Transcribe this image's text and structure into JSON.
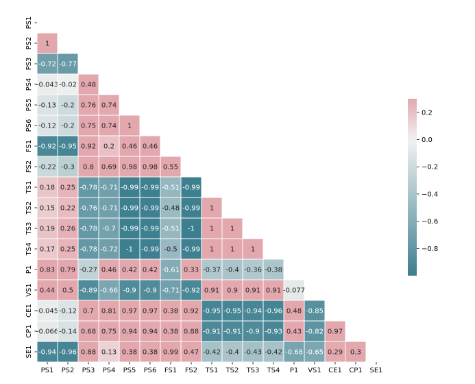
{
  "chart_data": {
    "type": "heatmap",
    "title": "",
    "xlabel": "",
    "ylabel": "",
    "mask": "upper-triangle-including-diagonal",
    "labels": [
      "PS1",
      "PS2",
      "PS3",
      "PS4",
      "PS5",
      "PS6",
      "FS1",
      "FS2",
      "TS1",
      "TS2",
      "TS3",
      "TS4",
      "P1",
      "VS1",
      "CE1",
      "CP1",
      "SE1"
    ],
    "cells": [
      {
        "row": "PS2",
        "col": "PS1",
        "value": 1,
        "label": "1"
      },
      {
        "row": "PS3",
        "col": "PS1",
        "value": -0.72,
        "label": "-0.72"
      },
      {
        "row": "PS3",
        "col": "PS2",
        "value": -0.77,
        "label": "-0.77"
      },
      {
        "row": "PS4",
        "col": "PS1",
        "value": -0.043,
        "label": "-0.043"
      },
      {
        "row": "PS4",
        "col": "PS2",
        "value": -0.02,
        "label": "-0.02"
      },
      {
        "row": "PS4",
        "col": "PS3",
        "value": 0.48,
        "label": "0.48"
      },
      {
        "row": "PS5",
        "col": "PS1",
        "value": -0.13,
        "label": "-0.13"
      },
      {
        "row": "PS5",
        "col": "PS2",
        "value": -0.2,
        "label": "-0.2"
      },
      {
        "row": "PS5",
        "col": "PS3",
        "value": 0.76,
        "label": "0.76"
      },
      {
        "row": "PS5",
        "col": "PS4",
        "value": 0.74,
        "label": "0.74"
      },
      {
        "row": "PS6",
        "col": "PS1",
        "value": -0.12,
        "label": "-0.12"
      },
      {
        "row": "PS6",
        "col": "PS2",
        "value": -0.2,
        "label": "-0.2"
      },
      {
        "row": "PS6",
        "col": "PS3",
        "value": 0.75,
        "label": "0.75"
      },
      {
        "row": "PS6",
        "col": "PS4",
        "value": 0.74,
        "label": "0.74"
      },
      {
        "row": "PS6",
        "col": "PS5",
        "value": 1,
        "label": "1"
      },
      {
        "row": "FS1",
        "col": "PS1",
        "value": -0.92,
        "label": "-0.92"
      },
      {
        "row": "FS1",
        "col": "PS2",
        "value": -0.95,
        "label": "-0.95"
      },
      {
        "row": "FS1",
        "col": "PS3",
        "value": 0.92,
        "label": "0.92"
      },
      {
        "row": "FS1",
        "col": "PS4",
        "value": 0.2,
        "label": "0.2"
      },
      {
        "row": "FS1",
        "col": "PS5",
        "value": 0.46,
        "label": "0.46"
      },
      {
        "row": "FS1",
        "col": "PS6",
        "value": 0.46,
        "label": "0.46"
      },
      {
        "row": "FS2",
        "col": "PS1",
        "value": -0.22,
        "label": "-0.22"
      },
      {
        "row": "FS2",
        "col": "PS2",
        "value": -0.3,
        "label": "-0.3"
      },
      {
        "row": "FS2",
        "col": "PS3",
        "value": 0.8,
        "label": "0.8"
      },
      {
        "row": "FS2",
        "col": "PS4",
        "value": 0.69,
        "label": "0.69"
      },
      {
        "row": "FS2",
        "col": "PS5",
        "value": 0.98,
        "label": "0.98"
      },
      {
        "row": "FS2",
        "col": "PS6",
        "value": 0.98,
        "label": "0.98"
      },
      {
        "row": "FS2",
        "col": "FS1",
        "value": 0.55,
        "label": "0.55"
      },
      {
        "row": "TS1",
        "col": "PS1",
        "value": 0.18,
        "label": "0.18"
      },
      {
        "row": "TS1",
        "col": "PS2",
        "value": 0.25,
        "label": "0.25"
      },
      {
        "row": "TS1",
        "col": "PS3",
        "value": -0.78,
        "label": "-0.78"
      },
      {
        "row": "TS1",
        "col": "PS4",
        "value": -0.71,
        "label": "-0.71"
      },
      {
        "row": "TS1",
        "col": "PS5",
        "value": -0.99,
        "label": "-0.99"
      },
      {
        "row": "TS1",
        "col": "PS6",
        "value": -0.99,
        "label": "-0.99"
      },
      {
        "row": "TS1",
        "col": "FS1",
        "value": -0.51,
        "label": "-0.51"
      },
      {
        "row": "TS1",
        "col": "FS2",
        "value": -0.99,
        "label": "-0.99"
      },
      {
        "row": "TS2",
        "col": "PS1",
        "value": 0.15,
        "label": "0.15"
      },
      {
        "row": "TS2",
        "col": "PS2",
        "value": 0.22,
        "label": "0.22"
      },
      {
        "row": "TS2",
        "col": "PS3",
        "value": -0.76,
        "label": "-0.76"
      },
      {
        "row": "TS2",
        "col": "PS4",
        "value": -0.71,
        "label": "-0.71"
      },
      {
        "row": "TS2",
        "col": "PS5",
        "value": -0.99,
        "label": "-0.99"
      },
      {
        "row": "TS2",
        "col": "PS6",
        "value": -0.99,
        "label": "-0.99"
      },
      {
        "row": "TS2",
        "col": "FS1",
        "value": -0.48,
        "label": "-0.48"
      },
      {
        "row": "TS2",
        "col": "FS2",
        "value": -0.99,
        "label": "-0.99"
      },
      {
        "row": "TS2",
        "col": "TS1",
        "value": 1,
        "label": "1"
      },
      {
        "row": "TS3",
        "col": "PS1",
        "value": 0.19,
        "label": "0.19"
      },
      {
        "row": "TS3",
        "col": "PS2",
        "value": 0.26,
        "label": "0.26"
      },
      {
        "row": "TS3",
        "col": "PS3",
        "value": -0.78,
        "label": "-0.78"
      },
      {
        "row": "TS3",
        "col": "PS4",
        "value": -0.7,
        "label": "-0.7"
      },
      {
        "row": "TS3",
        "col": "PS5",
        "value": -0.99,
        "label": "-0.99"
      },
      {
        "row": "TS3",
        "col": "PS6",
        "value": -0.99,
        "label": "-0.99"
      },
      {
        "row": "TS3",
        "col": "FS1",
        "value": -0.51,
        "label": "-0.51"
      },
      {
        "row": "TS3",
        "col": "FS2",
        "value": -1,
        "label": "-1"
      },
      {
        "row": "TS3",
        "col": "TS1",
        "value": 1,
        "label": "1"
      },
      {
        "row": "TS3",
        "col": "TS2",
        "value": 1,
        "label": "1"
      },
      {
        "row": "TS4",
        "col": "PS1",
        "value": 0.17,
        "label": "0.17"
      },
      {
        "row": "TS4",
        "col": "PS2",
        "value": 0.25,
        "label": "0.25"
      },
      {
        "row": "TS4",
        "col": "PS3",
        "value": -0.78,
        "label": "-0.78"
      },
      {
        "row": "TS4",
        "col": "PS4",
        "value": -0.72,
        "label": "-0.72"
      },
      {
        "row": "TS4",
        "col": "PS5",
        "value": -1,
        "label": "-1"
      },
      {
        "row": "TS4",
        "col": "PS6",
        "value": -0.99,
        "label": "-0.99"
      },
      {
        "row": "TS4",
        "col": "FS1",
        "value": -0.5,
        "label": "-0.5"
      },
      {
        "row": "TS4",
        "col": "FS2",
        "value": -0.99,
        "label": "-0.99"
      },
      {
        "row": "TS4",
        "col": "TS1",
        "value": 1,
        "label": "1"
      },
      {
        "row": "TS4",
        "col": "TS2",
        "value": 1,
        "label": "1"
      },
      {
        "row": "TS4",
        "col": "TS3",
        "value": 1,
        "label": "1"
      },
      {
        "row": "P1",
        "col": "PS1",
        "value": 0.83,
        "label": "0.83"
      },
      {
        "row": "P1",
        "col": "PS2",
        "value": 0.79,
        "label": "0.79"
      },
      {
        "row": "P1",
        "col": "PS3",
        "value": -0.27,
        "label": "-0.27"
      },
      {
        "row": "P1",
        "col": "PS4",
        "value": 0.46,
        "label": "0.46"
      },
      {
        "row": "P1",
        "col": "PS5",
        "value": 0.42,
        "label": "0.42"
      },
      {
        "row": "P1",
        "col": "PS6",
        "value": 0.42,
        "label": "0.42"
      },
      {
        "row": "P1",
        "col": "FS1",
        "value": -0.61,
        "label": "-0.61"
      },
      {
        "row": "P1",
        "col": "FS2",
        "value": 0.33,
        "label": "0.33"
      },
      {
        "row": "P1",
        "col": "TS1",
        "value": -0.37,
        "label": "-0.37"
      },
      {
        "row": "P1",
        "col": "TS2",
        "value": -0.4,
        "label": "-0.4"
      },
      {
        "row": "P1",
        "col": "TS3",
        "value": -0.36,
        "label": "-0.36"
      },
      {
        "row": "P1",
        "col": "TS4",
        "value": -0.38,
        "label": "-0.38"
      },
      {
        "row": "VS1",
        "col": "PS1",
        "value": 0.44,
        "label": "0.44"
      },
      {
        "row": "VS1",
        "col": "PS2",
        "value": 0.5,
        "label": "0.5"
      },
      {
        "row": "VS1",
        "col": "PS3",
        "value": -0.89,
        "label": "-0.89"
      },
      {
        "row": "VS1",
        "col": "PS4",
        "value": -0.66,
        "label": "-0.66"
      },
      {
        "row": "VS1",
        "col": "PS5",
        "value": -0.9,
        "label": "-0.9"
      },
      {
        "row": "VS1",
        "col": "PS6",
        "value": -0.9,
        "label": "-0.9"
      },
      {
        "row": "VS1",
        "col": "FS1",
        "value": -0.71,
        "label": "-0.71"
      },
      {
        "row": "VS1",
        "col": "FS2",
        "value": -0.92,
        "label": "-0.92"
      },
      {
        "row": "VS1",
        "col": "TS1",
        "value": 0.91,
        "label": "0.91"
      },
      {
        "row": "VS1",
        "col": "TS2",
        "value": 0.9,
        "label": "0.9"
      },
      {
        "row": "VS1",
        "col": "TS3",
        "value": 0.91,
        "label": "0.91"
      },
      {
        "row": "VS1",
        "col": "TS4",
        "value": 0.91,
        "label": "0.91"
      },
      {
        "row": "VS1",
        "col": "P1",
        "value": -0.077,
        "label": "-0.077"
      },
      {
        "row": "CE1",
        "col": "PS1",
        "value": -0.045,
        "label": "-0.045"
      },
      {
        "row": "CE1",
        "col": "PS2",
        "value": -0.12,
        "label": "-0.12"
      },
      {
        "row": "CE1",
        "col": "PS3",
        "value": 0.7,
        "label": "0.7"
      },
      {
        "row": "CE1",
        "col": "PS4",
        "value": 0.81,
        "label": "0.81"
      },
      {
        "row": "CE1",
        "col": "PS5",
        "value": 0.97,
        "label": "0.97"
      },
      {
        "row": "CE1",
        "col": "PS6",
        "value": 0.97,
        "label": "0.97"
      },
      {
        "row": "CE1",
        "col": "FS1",
        "value": 0.38,
        "label": "0.38"
      },
      {
        "row": "CE1",
        "col": "FS2",
        "value": 0.92,
        "label": "0.92"
      },
      {
        "row": "CE1",
        "col": "TS1",
        "value": -0.95,
        "label": "-0.95"
      },
      {
        "row": "CE1",
        "col": "TS2",
        "value": -0.95,
        "label": "-0.95"
      },
      {
        "row": "CE1",
        "col": "TS3",
        "value": -0.94,
        "label": "-0.94"
      },
      {
        "row": "CE1",
        "col": "TS4",
        "value": -0.96,
        "label": "-0.96"
      },
      {
        "row": "CE1",
        "col": "P1",
        "value": 0.48,
        "label": "0.48"
      },
      {
        "row": "CE1",
        "col": "VS1",
        "value": -0.85,
        "label": "-0.85"
      },
      {
        "row": "CP1",
        "col": "PS1",
        "value": -0.066,
        "label": "-0.066"
      },
      {
        "row": "CP1",
        "col": "PS2",
        "value": -0.14,
        "label": "-0.14"
      },
      {
        "row": "CP1",
        "col": "PS3",
        "value": 0.68,
        "label": "0.68"
      },
      {
        "row": "CP1",
        "col": "PS4",
        "value": 0.75,
        "label": "0.75"
      },
      {
        "row": "CP1",
        "col": "PS5",
        "value": 0.94,
        "label": "0.94"
      },
      {
        "row": "CP1",
        "col": "PS6",
        "value": 0.94,
        "label": "0.94"
      },
      {
        "row": "CP1",
        "col": "FS1",
        "value": 0.38,
        "label": "0.38"
      },
      {
        "row": "CP1",
        "col": "FS2",
        "value": 0.88,
        "label": "0.88"
      },
      {
        "row": "CP1",
        "col": "TS1",
        "value": -0.91,
        "label": "-0.91"
      },
      {
        "row": "CP1",
        "col": "TS2",
        "value": -0.91,
        "label": "-0.91"
      },
      {
        "row": "CP1",
        "col": "TS3",
        "value": -0.9,
        "label": "-0.9"
      },
      {
        "row": "CP1",
        "col": "TS4",
        "value": -0.93,
        "label": "-0.93"
      },
      {
        "row": "CP1",
        "col": "P1",
        "value": 0.43,
        "label": "0.43"
      },
      {
        "row": "CP1",
        "col": "VS1",
        "value": -0.82,
        "label": "-0.82"
      },
      {
        "row": "CP1",
        "col": "CE1",
        "value": 0.97,
        "label": "0.97"
      },
      {
        "row": "SE1",
        "col": "PS1",
        "value": -0.94,
        "label": "-0.94"
      },
      {
        "row": "SE1",
        "col": "PS2",
        "value": -0.96,
        "label": "-0.96"
      },
      {
        "row": "SE1",
        "col": "PS3",
        "value": 0.88,
        "label": "0.88"
      },
      {
        "row": "SE1",
        "col": "PS4",
        "value": 0.13,
        "label": "0.13"
      },
      {
        "row": "SE1",
        "col": "PS5",
        "value": 0.38,
        "label": "0.38"
      },
      {
        "row": "SE1",
        "col": "PS6",
        "value": 0.38,
        "label": "0.38"
      },
      {
        "row": "SE1",
        "col": "FS1",
        "value": 0.99,
        "label": "0.99"
      },
      {
        "row": "SE1",
        "col": "FS2",
        "value": 0.47,
        "label": "0.47"
      },
      {
        "row": "SE1",
        "col": "TS1",
        "value": -0.42,
        "label": "-0.42"
      },
      {
        "row": "SE1",
        "col": "TS2",
        "value": -0.4,
        "label": "-0.4"
      },
      {
        "row": "SE1",
        "col": "TS3",
        "value": -0.43,
        "label": "-0.43"
      },
      {
        "row": "SE1",
        "col": "TS4",
        "value": -0.42,
        "label": "-0.42"
      },
      {
        "row": "SE1",
        "col": "P1",
        "value": -0.68,
        "label": "-0.68"
      },
      {
        "row": "SE1",
        "col": "VS1",
        "value": -0.65,
        "label": "-0.65"
      },
      {
        "row": "SE1",
        "col": "CE1",
        "value": 0.29,
        "label": "0.29"
      },
      {
        "row": "SE1",
        "col": "CP1",
        "value": 0.3,
        "label": "0.3"
      }
    ],
    "colorbar": {
      "vmin": -1,
      "vmax": 0.3,
      "ticks": [
        0.2,
        0.0,
        -0.2,
        -0.4,
        -0.6,
        -0.8
      ],
      "tick_labels": [
        "0.2",
        "0.0",
        "−0.2",
        "−0.4",
        "−0.6",
        "−0.8"
      ]
    },
    "colormap": {
      "negative": "#3d7f8f",
      "neutral": "#f2f2f2",
      "positive": "#e3a7ae"
    }
  }
}
